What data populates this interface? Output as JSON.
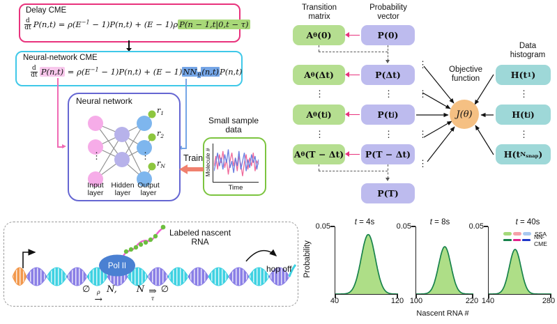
{
  "palette": {
    "delay_border": "#E8327C",
    "green_highlight": "#A8D878",
    "nn_cme_border": "#3FC8E8",
    "pink_highlight": "#F8C8EC",
    "blue_highlight": "#74A5E6",
    "nn_box_border": "#6566D2",
    "input_node": "#F6ACE8",
    "hidden_node": "#B7B2EA",
    "output_node": "#7EB6EE",
    "rate_node": "#8DC63F",
    "sample_border": "#7CC43F",
    "train_arrow": "#F0806E",
    "transition_box": "#B5DE90",
    "probability_box": "#BDBBEE",
    "histogram_box": "#9ED8D8",
    "objective_circle": "#F5C083",
    "flow_arrow_pink": "#E8327C",
    "dna_purple": "#8A7FE6",
    "dna_cyan": "#3FD2E2",
    "dna_orange": "#F2984C",
    "polii_fill": "#4A80D2",
    "rna_pink": "#F060D0",
    "ssa_fill": "#A5DA7A",
    "ssa_stroke": "#17824B",
    "legend_pink": "#F5A0A8",
    "legend_blue": "#A8C8F0",
    "nncme_green": "#17824B",
    "nncme_magenta": "#E0218A",
    "nncme_blue": "#2038C8"
  },
  "misc": {
    "dots": "⋮"
  },
  "delay_cme": {
    "title": "Delay CME",
    "eq": [
      {
        "t": "f",
        "x": "d",
        "y": "dt"
      },
      {
        "t": "n",
        "x": "P(n,t) = ρ(E"
      },
      {
        "t": "p",
        "x": "−1"
      },
      {
        "t": "n",
        "x": " − 1)P(n,t) + (E − 1)ρ"
      },
      {
        "t": "g",
        "x": "P(n − 1,t|0,t − τ)"
      }
    ]
  },
  "nn_cme": {
    "title": "Neural-network CME",
    "eq": [
      {
        "t": "f",
        "x": "d",
        "y": "dt"
      },
      {
        "t": "k",
        "x": "P(n,t)"
      },
      {
        "t": "n",
        "x": " = ρ(E"
      },
      {
        "t": "p",
        "x": "−1"
      },
      {
        "t": "n",
        "x": " − 1)P(n,t) + (E − 1)"
      },
      {
        "t": "b",
        "x": "NN"
      },
      {
        "t": "bs",
        "x": "θ"
      },
      {
        "t": "b",
        "x": "(n,t)"
      },
      {
        "t": "n",
        "x": "P(n,t)"
      }
    ]
  },
  "neural_network": {
    "title": "Neural network",
    "r_labels": [
      [
        {
          "t": "i",
          "x": "r"
        },
        {
          "t": "s",
          "x": "1"
        }
      ],
      [
        {
          "t": "i",
          "x": "r"
        },
        {
          "t": "s",
          "x": "2"
        }
      ],
      [
        {
          "t": "i",
          "x": "r"
        },
        {
          "t": "s",
          "x": "N"
        }
      ]
    ],
    "layer_labels": [
      [
        "Input",
        "layer"
      ],
      [
        "Hidden",
        "layer"
      ],
      [
        "Output",
        "layer"
      ]
    ]
  },
  "small_sample": {
    "title": [
      "Small sample",
      "data"
    ],
    "ylabel": "Molecule #",
    "xlabel": "Time",
    "train_label": "Train"
  },
  "pipeline": {
    "transition_header": [
      "Transition",
      "matrix"
    ],
    "probability_header": [
      "Probability",
      "vector"
    ],
    "objective_label": [
      "Objective",
      "function"
    ],
    "data_histogram_header": [
      "Data",
      "histogram"
    ],
    "j_label": "J(θ)",
    "a_boxes": [
      [
        {
          "t": "n",
          "x": "A"
        },
        {
          "t": "s",
          "x": "θ"
        },
        {
          "t": "n",
          "x": "(0)"
        }
      ],
      [
        {
          "t": "n",
          "x": "A"
        },
        {
          "t": "s",
          "x": "θ"
        },
        {
          "t": "n",
          "x": "(Δt)"
        }
      ],
      [
        {
          "t": "n",
          "x": "A"
        },
        {
          "t": "s",
          "x": "θ"
        },
        {
          "t": "n",
          "x": "(t"
        },
        {
          "t": "s",
          "x": "j"
        },
        {
          "t": "n",
          "x": ")"
        }
      ],
      [
        {
          "t": "n",
          "x": "A"
        },
        {
          "t": "s",
          "x": "θ"
        },
        {
          "t": "n",
          "x": "(T − Δt)"
        }
      ]
    ],
    "p_boxes": [
      [
        {
          "t": "n",
          "x": "P(0)"
        }
      ],
      [
        {
          "t": "n",
          "x": "P(Δt)"
        }
      ],
      [
        {
          "t": "n",
          "x": "P(t"
        },
        {
          "t": "s",
          "x": "j"
        },
        {
          "t": "n",
          "x": ")"
        }
      ],
      [
        {
          "t": "n",
          "x": "P(T − Δt)"
        }
      ],
      [
        {
          "t": "n",
          "x": "P(T)"
        }
      ]
    ],
    "h_boxes": [
      [
        {
          "t": "n",
          "x": "H(t"
        },
        {
          "t": "s",
          "x": "1"
        },
        {
          "t": "n",
          "x": ")"
        }
      ],
      [
        {
          "t": "n",
          "x": "H(t"
        },
        {
          "t": "s",
          "x": "j"
        },
        {
          "t": "n",
          "x": ")"
        }
      ],
      [
        {
          "t": "n",
          "x": "H(t"
        },
        {
          "t": "s",
          "x": "N"
        },
        {
          "t": "ss",
          "x": "snap"
        },
        {
          "t": "n",
          "x": ")"
        }
      ]
    ]
  },
  "nascent": {
    "label": [
      "Labeled nascent",
      "RNA"
    ],
    "polii": "Pol II",
    "hop_off": "hop off",
    "reaction": [
      {
        "t": "n",
        "x": "∅ "
      },
      {
        "t": "ov",
        "x": "ρ",
        "y": "→"
      },
      {
        "t": "n",
        "x": " N,"
      },
      {
        "t": "gap",
        "x": ""
      },
      {
        "t": "n",
        "x": "N "
      },
      {
        "t": "un",
        "x": "⇒",
        "y": "τ"
      },
      {
        "t": "n",
        "x": " ∅"
      }
    ]
  },
  "dist_plots": {
    "ylabel": "Probability",
    "xlabel": "Nascent RNA #",
    "ytick_label": "0.05",
    "titles": [
      [
        {
          "t": "i",
          "x": "t"
        },
        {
          "t": "n",
          "x": " = 4s"
        }
      ],
      [
        {
          "t": "i",
          "x": "t"
        },
        {
          "t": "n",
          "x": " = 8s"
        }
      ],
      [
        {
          "t": "i",
          "x": "t"
        },
        {
          "t": "n",
          "x": " = 40s"
        }
      ]
    ],
    "xtick_labels": [
      [
        "40",
        "120"
      ],
      [
        "100",
        "220"
      ],
      [
        "140",
        "280"
      ]
    ],
    "legend": {
      "ssa": "SSA",
      "nncme": "NN-CME"
    }
  },
  "chart_data": [
    {
      "type": "area",
      "title": "t = 4s",
      "xlabel": "Nascent RNA #",
      "ylabel": "Probability",
      "xlim": [
        40,
        120
      ],
      "ylim": [
        0,
        0.05
      ],
      "xticks": [
        40,
        120
      ],
      "yticks": [
        0.05
      ],
      "legend": [
        "SSA",
        "NN-CME"
      ],
      "legend_position": "top-right-of-third-panel",
      "gaussian": {
        "mean": 82,
        "sigma": 9,
        "peak": 0.044
      },
      "points": {
        "x": [
          40,
          50,
          55,
          60,
          65,
          70,
          75,
          82,
          88,
          93,
          98,
          103,
          110,
          120
        ],
        "y": [
          0,
          0.001,
          0.002,
          0.005,
          0.012,
          0.025,
          0.037,
          0.044,
          0.035,
          0.021,
          0.01,
          0.004,
          0.001,
          0
        ]
      }
    },
    {
      "type": "area",
      "title": "t = 8s",
      "xlabel": "Nascent RNA #",
      "ylabel": "Probability",
      "xlim": [
        100,
        220
      ],
      "ylim": [
        0,
        0.05
      ],
      "xticks": [
        100,
        220
      ],
      "yticks": [
        0.05
      ],
      "gaussian": {
        "mean": 160,
        "sigma": 13,
        "peak": 0.035
      },
      "points": {
        "x": [
          100,
          120,
          130,
          140,
          150,
          160,
          170,
          180,
          190,
          200,
          220
        ],
        "y": [
          0,
          0.001,
          0.003,
          0.013,
          0.029,
          0.035,
          0.026,
          0.011,
          0.003,
          0.001,
          0
        ]
      }
    },
    {
      "type": "area",
      "title": "t = 40s",
      "xlabel": "Nascent RNA #",
      "ylabel": "Probability",
      "xlim": [
        140,
        280
      ],
      "ylim": [
        0,
        0.05
      ],
      "xticks": [
        140,
        280
      ],
      "yticks": [
        0.05
      ],
      "gaussian": {
        "mean": 199,
        "sigma": 13,
        "peak": 0.033
      },
      "points": {
        "x": [
          140,
          160,
          170,
          180,
          190,
          199,
          210,
          220,
          230,
          240,
          280
        ],
        "y": [
          0,
          0.001,
          0.003,
          0.011,
          0.026,
          0.033,
          0.023,
          0.009,
          0.002,
          0,
          0
        ]
      }
    },
    {
      "type": "line",
      "title": "Small sample data",
      "xlabel": "Time",
      "ylabel": "Molecule #",
      "series": [
        {
          "name": "trajectory-1",
          "color": "#F06A9B",
          "y": [
            0.45,
            0.75,
            0.35,
            0.8,
            0.55,
            0.9,
            0.4,
            0.65,
            0.2,
            0.6,
            0.85,
            0.45,
            0.7,
            0.3,
            0.75,
            0.5,
            0.15,
            0.55,
            0.8,
            0.35,
            0.7,
            0.45,
            0.85,
            0.3,
            0.6,
            0.5
          ]
        },
        {
          "name": "trajectory-2",
          "color": "#6A7FE0",
          "y": [
            0.3,
            0.55,
            0.85,
            0.45,
            0.7,
            0.35,
            0.8,
            0.55,
            0.95,
            0.4,
            0.6,
            0.25,
            0.7,
            0.45,
            0.9,
            0.35,
            0.6,
            0.85,
            0.3,
            0.65,
            0.4,
            0.8,
            0.55,
            0.75,
            0.35,
            0.65
          ]
        }
      ]
    }
  ]
}
